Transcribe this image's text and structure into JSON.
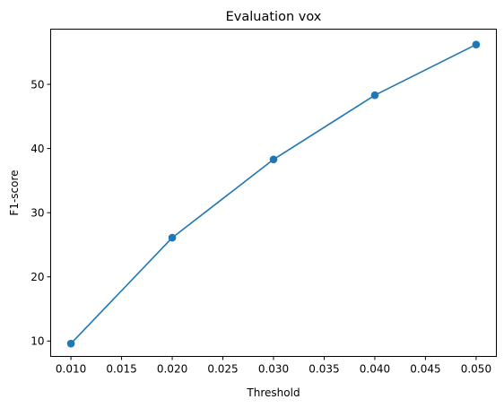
{
  "chart_data": {
    "type": "line",
    "title": "Evaluation vox",
    "xlabel": "Threshold",
    "ylabel": "F1-score",
    "xlim": [
      0.008,
      0.052
    ],
    "ylim": [
      7.6,
      58.6
    ],
    "xticks": [
      "0.010",
      "0.015",
      "0.020",
      "0.025",
      "0.030",
      "0.035",
      "0.040",
      "0.045",
      "0.050"
    ],
    "xtick_values": [
      0.01,
      0.015,
      0.02,
      0.025,
      0.03,
      0.035,
      0.04,
      0.045,
      0.05
    ],
    "yticks": [
      "10",
      "20",
      "30",
      "40",
      "50"
    ],
    "ytick_values": [
      10,
      20,
      30,
      40,
      50
    ],
    "grid": false,
    "legend": false,
    "series": [
      {
        "color": "#1f77b4",
        "marker": "circle",
        "x": [
          0.01,
          0.02,
          0.03,
          0.04,
          0.05
        ],
        "y": [
          9.6,
          26.1,
          38.3,
          48.3,
          56.2
        ]
      }
    ]
  }
}
